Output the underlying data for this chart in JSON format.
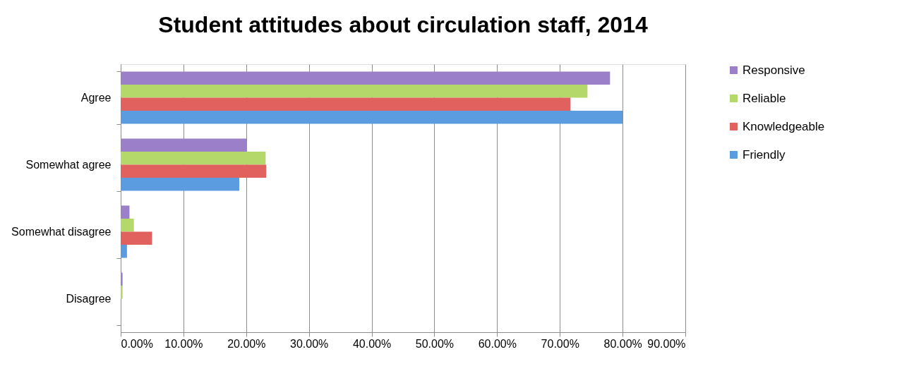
{
  "chart_data": {
    "type": "bar",
    "orientation": "horizontal",
    "title": "Student attitudes about circulation staff, 2014",
    "categories": [
      "Agree",
      "Somewhat agree",
      "Somewhat disagree",
      "Disagree"
    ],
    "series": [
      {
        "name": "Responsive",
        "color": "#9b80c9",
        "values": [
          78.0,
          20.1,
          1.4,
          0.3
        ]
      },
      {
        "name": "Reliable",
        "color": "#b5d86a",
        "values": [
          74.4,
          23.1,
          2.1,
          0.3
        ]
      },
      {
        "name": "Knowledgeable",
        "color": "#e0615d",
        "values": [
          71.7,
          23.2,
          5.0,
          0
        ]
      },
      {
        "name": "Friendly",
        "color": "#5b9be0",
        "values": [
          80.0,
          18.9,
          1.0,
          0
        ]
      }
    ],
    "xlim": [
      0,
      90
    ],
    "xticks": [
      {
        "value": 0,
        "label": "0.00%"
      },
      {
        "value": 10,
        "label": "10.00%"
      },
      {
        "value": 20,
        "label": "20.00%"
      },
      {
        "value": 30,
        "label": "30.00%"
      },
      {
        "value": 40,
        "label": "40.00%"
      },
      {
        "value": 50,
        "label": "50.00%"
      },
      {
        "value": 60,
        "label": "60.00%"
      },
      {
        "value": 70,
        "label": "70.00%"
      },
      {
        "value": 80,
        "label": "80.00%"
      },
      {
        "value": 90,
        "label": "90.00%"
      }
    ],
    "grid": "x",
    "legend": "right"
  }
}
